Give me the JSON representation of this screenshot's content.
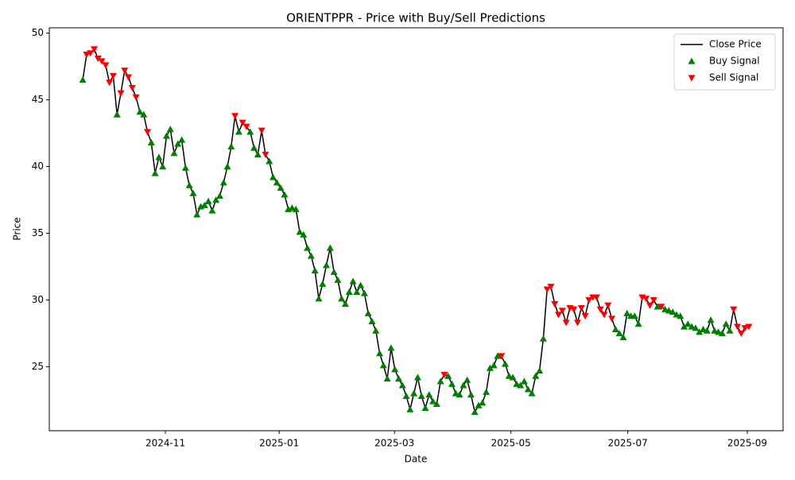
{
  "chart_data": {
    "type": "line",
    "title": "ORIENTPPR - Price with Buy/Sell Predictions",
    "xlabel": "Date",
    "ylabel": "Price",
    "xlim": [
      -8.8,
      184.0
    ],
    "xticks": [
      {
        "value": 21.7,
        "label": "2024-11"
      },
      {
        "value": 51.6,
        "label": "2025-01"
      },
      {
        "value": 81.9,
        "label": "2025-03"
      },
      {
        "value": 112.5,
        "label": "2025-05"
      },
      {
        "value": 143.2,
        "label": "2025-07"
      },
      {
        "value": 174.6,
        "label": "2025-09"
      }
    ],
    "ylim": [
      20.2,
      50.4
    ],
    "yticks": [
      25,
      30,
      35,
      40,
      45,
      50
    ],
    "legend": "upper right",
    "series": [
      {
        "name": "Close Price",
        "color": "black",
        "type": "line",
        "values": [
          46.5,
          48.4,
          48.5,
          48.8,
          48.1,
          47.9,
          47.6,
          46.3,
          46.8,
          43.9,
          45.5,
          47.2,
          46.7,
          45.9,
          45.2,
          44.1,
          43.9,
          42.6,
          41.8,
          39.5,
          40.7,
          40.0,
          42.3,
          42.8,
          41.0,
          41.7,
          42.0,
          39.9,
          38.6,
          38.0,
          36.4,
          37.0,
          37.1,
          37.4,
          36.7,
          37.5,
          37.8,
          38.8,
          40.0,
          41.5,
          43.8,
          42.6,
          43.3,
          43.0,
          42.6,
          41.4,
          40.9,
          42.7,
          40.9,
          40.4,
          39.2,
          38.8,
          38.4,
          37.9,
          36.8,
          36.9,
          36.8,
          35.1,
          34.9,
          33.9,
          33.3,
          32.2,
          30.1,
          31.2,
          32.6,
          33.9,
          32.1,
          31.5,
          30.1,
          29.7,
          30.6,
          31.4,
          30.6,
          31.1,
          30.5,
          29.0,
          28.4,
          27.7,
          26.0,
          25.1,
          24.1,
          26.4,
          24.8,
          24.1,
          23.6,
          22.8,
          21.8,
          23.0,
          24.2,
          22.8,
          21.9,
          22.9,
          22.4,
          22.2,
          23.9,
          24.4,
          24.3,
          23.7,
          23.0,
          22.9,
          23.6,
          24.0,
          22.9,
          21.6,
          22.1,
          22.3,
          23.1,
          24.9,
          25.1,
          25.8,
          25.8,
          25.2,
          24.3,
          24.2,
          23.7,
          23.6,
          23.9,
          23.3,
          23.0,
          24.3,
          24.7,
          27.1,
          30.8,
          31.0,
          29.7,
          28.9,
          29.2,
          28.3,
          29.4,
          29.3,
          28.3,
          29.4,
          28.8,
          30.0,
          30.2,
          30.2,
          29.3,
          28.9,
          29.6,
          28.6,
          27.8,
          27.5,
          27.2,
          29.0,
          28.8,
          28.8,
          28.2,
          30.2,
          30.1,
          29.6,
          30.0,
          29.5,
          29.5,
          29.3,
          29.2,
          29.1,
          28.9,
          28.8,
          28.0,
          28.2,
          28.0,
          27.9,
          27.6,
          27.8,
          27.7,
          28.5,
          27.7,
          27.6,
          27.5,
          28.2,
          27.7,
          29.3,
          28.0,
          27.5,
          27.9,
          28.0
        ]
      },
      {
        "name": "Buy Signal",
        "color": "green",
        "type": "scatter",
        "marker": "^",
        "x": [
          0,
          9,
          15,
          16,
          18,
          19,
          20,
          21,
          22,
          23,
          24,
          25,
          26,
          27,
          28,
          29,
          30,
          31,
          32,
          33,
          34,
          35,
          36,
          37,
          38,
          39,
          41,
          44,
          45,
          46,
          49,
          50,
          51,
          52,
          53,
          54,
          55,
          56,
          57,
          58,
          59,
          60,
          61,
          62,
          63,
          64,
          65,
          66,
          67,
          68,
          69,
          70,
          71,
          72,
          73,
          74,
          75,
          76,
          77,
          78,
          79,
          80,
          81,
          82,
          83,
          84,
          85,
          86,
          87,
          88,
          89,
          90,
          91,
          92,
          93,
          94,
          96,
          97,
          98,
          99,
          100,
          101,
          102,
          103,
          104,
          105,
          106,
          107,
          108,
          109,
          111,
          112,
          113,
          114,
          115,
          116,
          117,
          118,
          119,
          120,
          121,
          140,
          141,
          142,
          143,
          144,
          145,
          146,
          151,
          153,
          154,
          155,
          156,
          157,
          158,
          159,
          160,
          161,
          162,
          163,
          164,
          165,
          166,
          167,
          168,
          169,
          170
        ],
        "values": [
          46.5,
          43.9,
          44.1,
          43.9,
          41.8,
          39.5,
          40.7,
          40.0,
          42.3,
          42.8,
          41.0,
          41.7,
          42.0,
          39.9,
          38.6,
          38.0,
          36.4,
          37.0,
          37.1,
          37.4,
          36.7,
          37.5,
          37.8,
          38.8,
          40.0,
          41.5,
          42.6,
          42.6,
          41.4,
          40.9,
          40.4,
          39.2,
          38.8,
          38.4,
          37.9,
          36.8,
          36.9,
          36.8,
          35.1,
          34.9,
          33.9,
          33.3,
          32.2,
          30.1,
          31.2,
          32.6,
          33.9,
          32.1,
          31.5,
          30.1,
          29.7,
          30.6,
          31.4,
          30.6,
          31.1,
          30.5,
          29.0,
          28.4,
          27.7,
          26.0,
          25.1,
          24.1,
          26.4,
          24.8,
          24.1,
          23.6,
          22.8,
          21.8,
          23.0,
          24.2,
          22.8,
          21.9,
          22.9,
          22.4,
          22.2,
          23.9,
          24.3,
          23.7,
          23.0,
          22.9,
          23.6,
          24.0,
          22.9,
          21.6,
          22.1,
          22.3,
          23.1,
          24.9,
          25.1,
          25.8,
          25.2,
          24.3,
          24.2,
          23.7,
          23.6,
          23.9,
          23.3,
          23.0,
          24.3,
          24.7,
          27.1,
          27.8,
          27.5,
          27.2,
          29.0,
          28.8,
          28.8,
          28.2,
          29.5,
          29.3,
          29.2,
          29.1,
          28.9,
          28.8,
          28.0,
          28.2,
          28.0,
          27.9,
          27.6,
          27.8,
          27.7,
          28.5,
          27.7,
          27.6,
          27.5,
          28.2,
          27.7
        ]
      },
      {
        "name": "Sell Signal",
        "color": "red",
        "type": "scatter",
        "marker": "v",
        "x": [
          1,
          2,
          3,
          4,
          5,
          6,
          7,
          8,
          10,
          11,
          12,
          13,
          14,
          17,
          40,
          42,
          43,
          47,
          48,
          95,
          110,
          122,
          123,
          124,
          125,
          126,
          127,
          128,
          129,
          130,
          131,
          132,
          133,
          134,
          135,
          136,
          137,
          138,
          139,
          147,
          148,
          149,
          150,
          152,
          171,
          172,
          173,
          174,
          175
        ],
        "values": [
          48.4,
          48.5,
          48.8,
          48.1,
          47.9,
          47.6,
          46.3,
          46.8,
          45.5,
          47.2,
          46.7,
          45.9,
          45.2,
          42.6,
          43.8,
          43.3,
          43.0,
          42.7,
          40.9,
          24.4,
          25.8,
          30.8,
          31.0,
          29.7,
          28.9,
          29.2,
          28.3,
          29.4,
          29.3,
          28.3,
          29.4,
          28.8,
          30.0,
          30.2,
          30.2,
          29.3,
          28.9,
          29.6,
          28.6,
          30.2,
          30.1,
          29.6,
          30.0,
          29.5,
          29.3,
          28.0,
          27.5,
          27.9,
          28.0
        ]
      }
    ]
  }
}
